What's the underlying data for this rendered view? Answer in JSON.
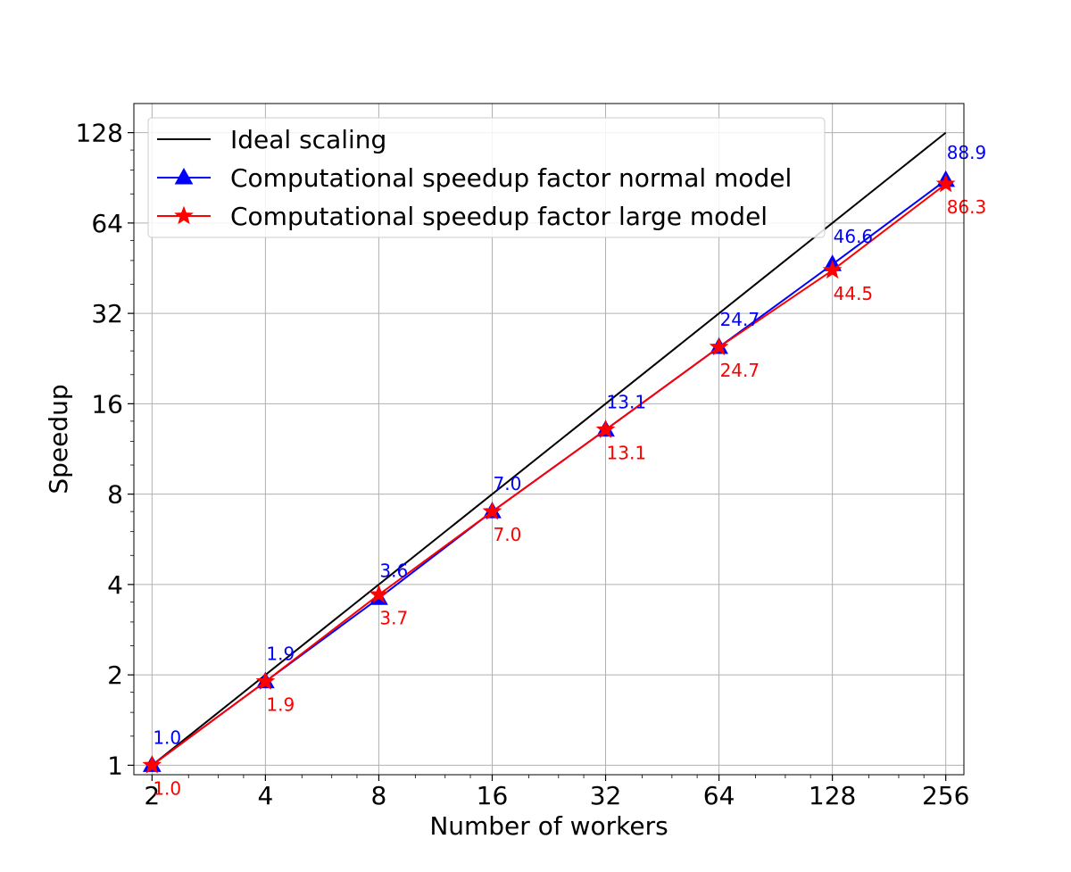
{
  "chart_data": {
    "type": "line",
    "title": "",
    "xlabel": "Number of workers",
    "ylabel": "Speedup",
    "x_scale": "log2",
    "y_scale": "log2",
    "grid": true,
    "legend_position": "top-left",
    "xlim": [
      1.79,
      286
    ],
    "ylim": [
      0.93,
      160
    ],
    "x": [
      2,
      4,
      8,
      16,
      32,
      64,
      128,
      256
    ],
    "x_tick_labels": [
      "2",
      "4",
      "8",
      "16",
      "32",
      "64",
      "128",
      "256"
    ],
    "y_ticks": [
      1,
      2,
      4,
      8,
      16,
      32,
      64,
      128
    ],
    "y_tick_labels": [
      "1",
      "2",
      "4",
      "8",
      "16",
      "32",
      "64",
      "128"
    ],
    "series": [
      {
        "name": "Ideal scaling",
        "color": "#000000",
        "marker": "none",
        "x": [
          2,
          256
        ],
        "values": [
          1,
          128
        ],
        "labels": []
      },
      {
        "name": "Computational speedup factor normal model",
        "color": "#0000ff",
        "marker": "triangle",
        "values": [
          1.0,
          1.9,
          3.6,
          7.0,
          13.1,
          24.7,
          46.6,
          88.9
        ],
        "labels": [
          "1.0",
          "1.9",
          "3.6",
          "7.0",
          "13.1",
          "24.7",
          "46.6",
          "88.9"
        ],
        "label_position": "above"
      },
      {
        "name": "Computational speedup factor large model",
        "color": "#ff0000",
        "marker": "star",
        "values": [
          1.0,
          1.9,
          3.7,
          7.0,
          13.1,
          24.7,
          44.5,
          86.3
        ],
        "labels": [
          "1.0",
          "1.9",
          "3.7",
          "7.0",
          "13.1",
          "24.7",
          "44.5",
          "86.3"
        ],
        "label_position": "below"
      }
    ]
  }
}
